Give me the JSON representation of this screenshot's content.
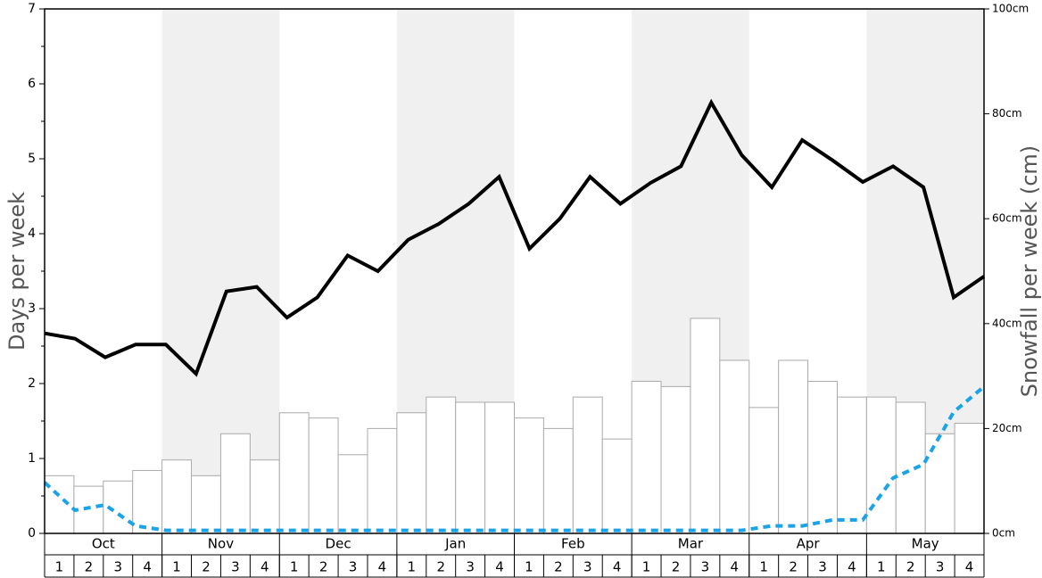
{
  "chart_data": {
    "type": "bar-line",
    "y_label": "Days per week",
    "y2_label": "Snowfall per week (cm)",
    "months": [
      "Oct",
      "Nov",
      "Dec",
      "Jan",
      "Feb",
      "Mar",
      "Apr",
      "May"
    ],
    "categories": [
      "1",
      "2",
      "3",
      "4",
      "1",
      "2",
      "3",
      "4",
      "1",
      "2",
      "3",
      "4",
      "1",
      "2",
      "3",
      "4",
      "1",
      "2",
      "3",
      "4",
      "1",
      "2",
      "3",
      "4",
      "1",
      "2",
      "3",
      "4",
      "1",
      "2",
      "3",
      "4"
    ],
    "ylim": [
      0,
      7
    ],
    "yticks": [
      0,
      1,
      2,
      3,
      4,
      5,
      6,
      7
    ],
    "yminorticks": [
      0.5,
      1.5,
      2.5,
      3.5,
      4.5,
      5.5,
      6.5
    ],
    "y2lim": [
      0,
      100
    ],
    "y2ticks": [
      {
        "value": 0,
        "label": "0cm"
      },
      {
        "value": 20,
        "label": "20cm"
      },
      {
        "value": 40,
        "label": "40cm"
      },
      {
        "value": 60,
        "label": "60cm"
      },
      {
        "value": 80,
        "label": "80cm"
      },
      {
        "value": 100,
        "label": "100cm"
      }
    ],
    "series": [
      {
        "type": "bar",
        "axis": "y2",
        "color": "#ffffff",
        "values": [
          11,
          9,
          10,
          12,
          14,
          11,
          19,
          14,
          23,
          22,
          15,
          20,
          23,
          26,
          25,
          25,
          22,
          20,
          26,
          18,
          29,
          28,
          41,
          33,
          24,
          33,
          29,
          26,
          26,
          25,
          19,
          21
        ]
      },
      {
        "type": "line",
        "color": "#000000",
        "values": [
          2.67,
          2.6,
          2.35,
          2.52,
          2.52,
          2.13,
          3.23,
          3.29,
          2.88,
          3.15,
          3.71,
          3.5,
          3.92,
          4.13,
          4.4,
          4.76,
          3.8,
          4.2,
          4.76,
          4.4,
          4.68,
          4.9,
          5.75,
          5.05,
          4.62,
          5.25,
          4.98,
          4.69,
          4.9,
          4.62,
          3.15,
          3.43
        ]
      },
      {
        "type": "line",
        "dashed": true,
        "color": "#1aa3e8",
        "values": [
          0.68,
          0.31,
          0.38,
          0.1,
          0.04,
          0.04,
          0.04,
          0.04,
          0.04,
          0.04,
          0.04,
          0.04,
          0.04,
          0.04,
          0.04,
          0.04,
          0.04,
          0.04,
          0.04,
          0.04,
          0.04,
          0.04,
          0.04,
          0.04,
          0.1,
          0.1,
          0.18,
          0.18,
          0.74,
          0.92,
          1.62,
          1.96
        ]
      }
    ]
  }
}
